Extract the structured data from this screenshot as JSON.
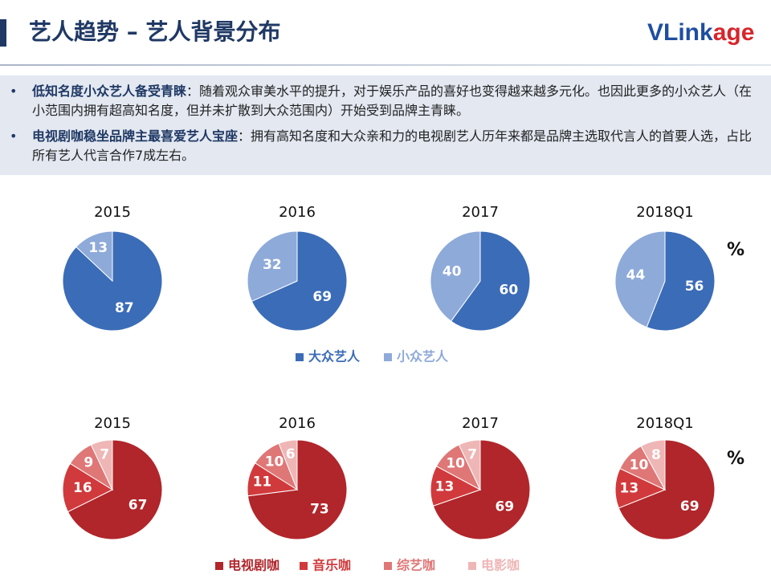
{
  "header": {
    "title": "艺人趋势 – 艺人背景分布",
    "logo": [
      "VLink",
      "age"
    ]
  },
  "bullets": [
    {
      "bold": "低知名度小众艺人备受青睐",
      "text": "：随着观众审美水平的提升，对于娱乐产品的喜好也变得越来越多元化。也因此更多的小众艺人（在小范围内拥有超高知名度，但并未扩散到大众范围内）开始受到品牌主青睐。"
    },
    {
      "bold": "电视剧咖稳坐品牌主最喜爱艺人宝座",
      "text": "：拥有高知名度和大众亲和力的电视剧艺人历年来都是品牌主选取代言人的首要人选，占比所有艺人代言合作7成左右。"
    }
  ],
  "chart_data": [
    {
      "type": "pie",
      "unit_label": "%",
      "categories": [
        "大众艺人",
        "小众艺人"
      ],
      "colors": [
        "#3b6cb7",
        "#8eaad9"
      ],
      "pies": [
        {
          "title": "2015",
          "values": [
            87,
            13
          ]
        },
        {
          "title": "2016",
          "values": [
            69,
            32
          ]
        },
        {
          "title": "2017",
          "values": [
            60,
            40
          ]
        },
        {
          "title": "2018Q1",
          "values": [
            56,
            44
          ]
        }
      ]
    },
    {
      "type": "pie",
      "unit_label": "%",
      "categories": [
        "电视剧咖",
        "音乐咖",
        "综艺咖",
        "电影咖"
      ],
      "colors": [
        "#b0262b",
        "#d13a3c",
        "#df7777",
        "#efb6b6"
      ],
      "pies": [
        {
          "title": "2015",
          "values": [
            67,
            16,
            9,
            7
          ]
        },
        {
          "title": "2016",
          "values": [
            73,
            11,
            10,
            6
          ]
        },
        {
          "title": "2017",
          "values": [
            69,
            13,
            10,
            7
          ]
        },
        {
          "title": "2018Q1",
          "values": [
            69,
            13,
            10,
            8
          ]
        }
      ]
    }
  ]
}
